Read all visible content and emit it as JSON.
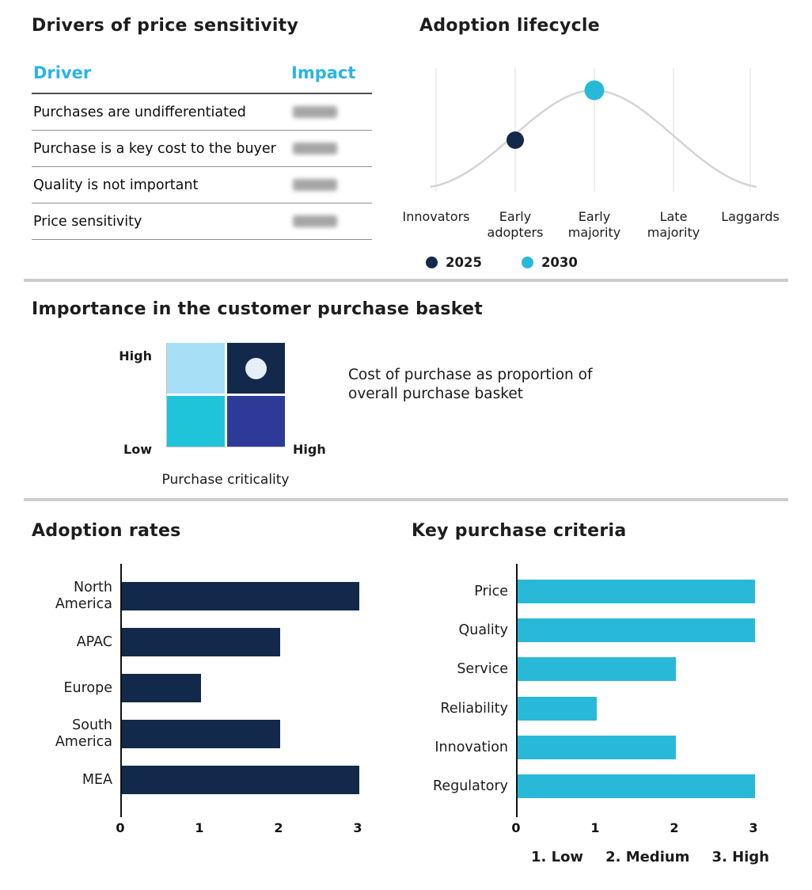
{
  "colors": {
    "navy": "#12294b",
    "cyan": "#29b9d8",
    "header_cyan": "#29b4e6",
    "matrix_light_blue": "#a7dff6",
    "matrix_cyan": "#1fc4da",
    "matrix_indigo": "#2e3a98",
    "matrix_marker": "#e6eef8",
    "curve_gray": "#d4d4d4"
  },
  "drivers": {
    "title": "Drivers of price sensitivity",
    "table": {
      "col_driver": "Driver",
      "col_impact": "Impact",
      "rows": [
        {
          "driver": "Purchases are undifferentiated"
        },
        {
          "driver": "Purchase is a key cost to the buyer"
        },
        {
          "driver": "Quality is not important"
        },
        {
          "driver": "Price sensitivity"
        }
      ]
    }
  },
  "lifecycle": {
    "title": "Adoption lifecycle",
    "categories": [
      "Innovators",
      "Early adopters",
      "Early majority",
      "Late majority",
      "Laggards"
    ],
    "legend": [
      {
        "label": "2025",
        "color": "#12294b",
        "marker_at": "Early adopters"
      },
      {
        "label": "2030",
        "color": "#29b9d8",
        "marker_at": "Early majority"
      }
    ]
  },
  "basket": {
    "title": "Importance in the customer purchase basket",
    "y_axis_high": "High",
    "y_axis_low": "Low",
    "x_axis_high": "High",
    "x_label": "Purchase criticality",
    "annotation_line1": "Cost of purchase as proportion of",
    "annotation_line2": "overall purchase basket"
  },
  "adoption": {
    "title": "Adoption rates",
    "categories": [
      "North America",
      "APAC",
      "Europe",
      "South America",
      "MEA"
    ],
    "values": [
      3,
      2,
      1,
      2,
      3
    ],
    "ticks": [
      "0",
      "1",
      "2",
      "3"
    ]
  },
  "criteria": {
    "title": "Key purchase criteria",
    "categories": [
      "Price",
      "Quality",
      "Service",
      "Reliability",
      "Innovation",
      "Regulatory"
    ],
    "values": [
      3,
      3,
      2,
      1,
      2,
      3
    ],
    "ticks": [
      "0",
      "1",
      "2",
      "3"
    ],
    "scale_note": [
      "1. Low",
      "2. Medium",
      "3. High"
    ]
  },
  "chart_data": [
    {
      "type": "line",
      "title": "Adoption lifecycle",
      "x": [
        "Innovators",
        "Early adopters",
        "Early majority",
        "Late majority",
        "Laggards"
      ],
      "curve": "bell curve peaking at Early majority",
      "grid": "vertical gridlines at each stage",
      "legend_position": "bottom",
      "series": [
        {
          "name": "2025",
          "marker_at": "Early adopters",
          "color": "#12294b"
        },
        {
          "name": "2030",
          "marker_at": "Early majority",
          "color": "#29b9d8"
        }
      ]
    },
    {
      "type": "heatmap",
      "title": "Importance in the customer purchase basket",
      "xlabel": "Purchase criticality",
      "x_range": [
        "Low",
        "High"
      ],
      "y_range": [
        "Low",
        "High"
      ],
      "cells": [
        {
          "row": "top",
          "col": "left",
          "color": "#a7dff6"
        },
        {
          "row": "top",
          "col": "right",
          "color": "#12294b",
          "marker": "light circle marker"
        },
        {
          "row": "bottom",
          "col": "left",
          "color": "#1fc4da"
        },
        {
          "row": "bottom",
          "col": "right",
          "color": "#2e3a98"
        }
      ],
      "annotation": "Cost of purchase as proportion of overall purchase basket"
    },
    {
      "type": "bar",
      "title": "Adoption rates",
      "orientation": "horizontal",
      "categories": [
        "North America",
        "APAC",
        "Europe",
        "South America",
        "MEA"
      ],
      "values": [
        3,
        2,
        1,
        2,
        3
      ],
      "xlim": [
        0,
        3
      ],
      "bar_color": "#12294b"
    },
    {
      "type": "bar",
      "title": "Key purchase criteria",
      "orientation": "horizontal",
      "categories": [
        "Price",
        "Quality",
        "Service",
        "Reliability",
        "Innovation",
        "Regulatory"
      ],
      "values": [
        3,
        3,
        2,
        1,
        2,
        3
      ],
      "xlim": [
        0,
        3
      ],
      "bar_color": "#29b9d8",
      "scale_note": "1. Low  2. Medium  3. High"
    }
  ]
}
